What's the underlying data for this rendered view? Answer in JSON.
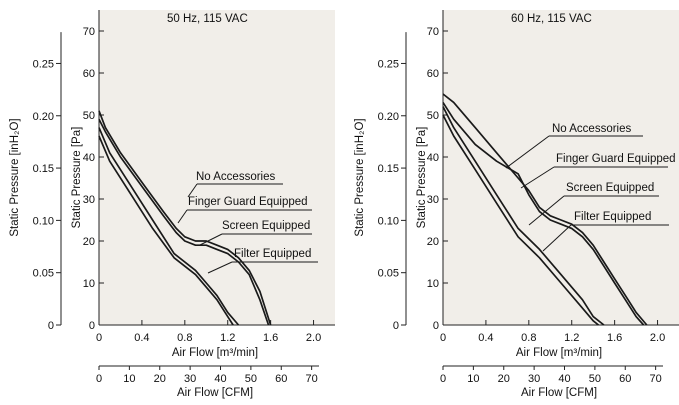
{
  "chart_data": [
    {
      "type": "line",
      "title": "50 Hz, 115 VAC",
      "xlabel": "Air Flow [m³/min]",
      "x2label": "Air Flow [CFM]",
      "ylabel": "Static Pressure [Pa]",
      "y2label": "Static Pressure [inH₂O]",
      "xlim": [
        0,
        2.2
      ],
      "ylim": [
        0,
        75
      ],
      "x_ticks": [
        "0",
        "0.4",
        "0.8",
        "1.2",
        "1.6",
        "2.0"
      ],
      "cfm_ticks": [
        "0",
        "10",
        "20",
        "30",
        "40",
        "50",
        "60",
        "70"
      ],
      "y_ticks": [
        "0",
        "10",
        "20",
        "30",
        "40",
        "50",
        "60",
        "70"
      ],
      "inh2o_ticks": [
        "0",
        "0.05",
        "0.10",
        "0.15",
        "0.20",
        "0.25"
      ],
      "grid": false,
      "series": [
        {
          "name": "No Accessories",
          "x": [
            0,
            0.06,
            0.2,
            0.4,
            0.6,
            0.72,
            0.8,
            0.9,
            1.0,
            1.1,
            1.2,
            1.3,
            1.4,
            1.5,
            1.6
          ],
          "y": [
            51,
            47,
            41,
            34,
            27,
            23,
            21,
            20,
            20,
            19,
            18,
            16,
            13,
            8,
            0
          ]
        },
        {
          "name": "Finger Guard Equipped",
          "x": [
            0,
            0.06,
            0.2,
            0.4,
            0.6,
            0.72,
            0.8,
            0.9,
            1.0,
            1.1,
            1.2,
            1.3,
            1.4,
            1.5,
            1.58
          ],
          "y": [
            49,
            46,
            40,
            33,
            26,
            22,
            20,
            19,
            19,
            18,
            17,
            15,
            12,
            6,
            0
          ]
        },
        {
          "name": "Screen Equipped",
          "x": [
            0,
            0.1,
            0.3,
            0.5,
            0.7,
            0.9,
            1.0,
            1.1,
            1.2,
            1.3
          ],
          "y": [
            47,
            41,
            33,
            25,
            17,
            13,
            10,
            7,
            3,
            0
          ]
        },
        {
          "name": "Filter Equipped",
          "x": [
            0,
            0.1,
            0.3,
            0.5,
            0.7,
            0.9,
            1.0,
            1.1,
            1.2,
            1.25
          ],
          "y": [
            45,
            39,
            31,
            23,
            16,
            12,
            9,
            6,
            2,
            0
          ]
        }
      ]
    },
    {
      "type": "line",
      "title": "60 Hz, 115 VAC",
      "xlabel": "Air Flow [m³/min]",
      "x2label": "Air Flow [CFM]",
      "ylabel": "Static Pressure [Pa]",
      "y2label": "Static Pressure [inH₂O]",
      "xlim": [
        0,
        2.2
      ],
      "ylim": [
        0,
        75
      ],
      "x_ticks": [
        "0",
        "0.4",
        "0.8",
        "1.2",
        "1.6",
        "2.0"
      ],
      "cfm_ticks": [
        "0",
        "10",
        "20",
        "30",
        "40",
        "50",
        "60",
        "70"
      ],
      "y_ticks": [
        "0",
        "10",
        "20",
        "30",
        "40",
        "50",
        "60",
        "70"
      ],
      "inh2o_ticks": [
        "0",
        "0.05",
        "0.10",
        "0.15",
        "0.20",
        "0.25"
      ],
      "grid": false,
      "series": [
        {
          "name": "No Accessories",
          "x": [
            0,
            0.1,
            0.3,
            0.5,
            0.7,
            0.8,
            0.9,
            1.0,
            1.1,
            1.2,
            1.3,
            1.4,
            1.5,
            1.6,
            1.7,
            1.8,
            1.9
          ],
          "y": [
            55,
            53,
            47,
            41,
            35,
            32,
            28,
            26,
            25,
            24,
            22,
            19,
            15,
            11,
            7,
            3,
            0
          ]
        },
        {
          "name": "Finger Guard Equipped",
          "x": [
            0,
            0.1,
            0.3,
            0.5,
            0.7,
            0.8,
            0.9,
            1.0,
            1.1,
            1.2,
            1.3,
            1.4,
            1.5,
            1.6,
            1.7,
            1.8,
            1.87
          ],
          "y": [
            53,
            49,
            43,
            39,
            36,
            31,
            27,
            25,
            24,
            23,
            21,
            18,
            14,
            10,
            6,
            2,
            0
          ]
        },
        {
          "name": "Screen Equipped",
          "x": [
            0,
            0.1,
            0.3,
            0.5,
            0.7,
            0.9,
            1.1,
            1.3,
            1.4,
            1.5
          ],
          "y": [
            52,
            47,
            39,
            31,
            23,
            18,
            12,
            6,
            2,
            0
          ]
        },
        {
          "name": "Filter Equipped",
          "x": [
            0,
            0.1,
            0.3,
            0.5,
            0.7,
            0.9,
            1.1,
            1.3,
            1.4,
            1.45
          ],
          "y": [
            50,
            45,
            37,
            29,
            21,
            16,
            10,
            4,
            1,
            0
          ]
        }
      ]
    }
  ]
}
